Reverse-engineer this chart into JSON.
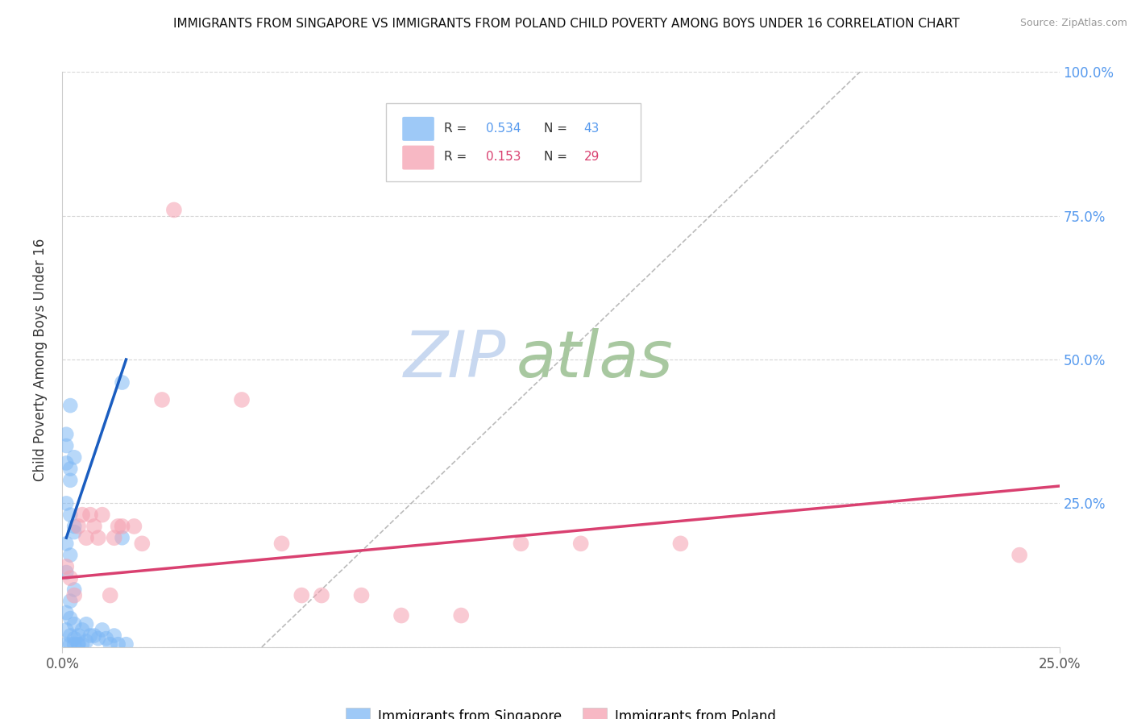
{
  "title": "IMMIGRANTS FROM SINGAPORE VS IMMIGRANTS FROM POLAND CHILD POVERTY AMONG BOYS UNDER 16 CORRELATION CHART",
  "source": "Source: ZipAtlas.com",
  "ylabel": "Child Poverty Among Boys Under 16",
  "xlim": [
    0,
    0.25
  ],
  "ylim": [
    0,
    1.0
  ],
  "xtick_values": [
    0,
    0.25
  ],
  "xtick_labels": [
    "0.0%",
    "25.0%"
  ],
  "ytick_values": [
    0.0,
    0.25,
    0.5,
    0.75,
    1.0
  ],
  "right_ytick_labels": [
    "",
    "25.0%",
    "50.0%",
    "75.0%",
    "100.0%"
  ],
  "singapore_color": "#7EB8F5",
  "singapore_line_color": "#1A5DC0",
  "poland_color": "#F5A0B0",
  "poland_line_color": "#D94070",
  "singapore_R": 0.534,
  "singapore_N": 43,
  "poland_R": 0.153,
  "poland_N": 29,
  "singapore_scatter": [
    [
      0.001,
      0.32
    ],
    [
      0.001,
      0.35
    ],
    [
      0.001,
      0.37
    ],
    [
      0.002,
      0.31
    ],
    [
      0.002,
      0.29
    ],
    [
      0.002,
      0.42
    ],
    [
      0.003,
      0.33
    ],
    [
      0.003,
      0.2
    ],
    [
      0.001,
      0.25
    ],
    [
      0.002,
      0.23
    ],
    [
      0.003,
      0.21
    ],
    [
      0.001,
      0.18
    ],
    [
      0.002,
      0.16
    ],
    [
      0.001,
      0.13
    ],
    [
      0.003,
      0.1
    ],
    [
      0.002,
      0.08
    ],
    [
      0.001,
      0.06
    ],
    [
      0.002,
      0.05
    ],
    [
      0.003,
      0.04
    ],
    [
      0.001,
      0.03
    ],
    [
      0.002,
      0.02
    ],
    [
      0.003,
      0.015
    ],
    [
      0.004,
      0.005
    ],
    [
      0.005,
      0.005
    ],
    [
      0.004,
      0.02
    ],
    [
      0.005,
      0.03
    ],
    [
      0.006,
      0.04
    ],
    [
      0.007,
      0.02
    ],
    [
      0.006,
      0.01
    ],
    [
      0.008,
      0.02
    ],
    [
      0.009,
      0.015
    ],
    [
      0.01,
      0.03
    ],
    [
      0.011,
      0.015
    ],
    [
      0.012,
      0.005
    ],
    [
      0.013,
      0.02
    ],
    [
      0.014,
      0.005
    ],
    [
      0.015,
      0.19
    ],
    [
      0.015,
      0.46
    ],
    [
      0.016,
      0.005
    ],
    [
      0.003,
      0.005
    ],
    [
      0.004,
      0.005
    ],
    [
      0.002,
      0.005
    ],
    [
      0.001,
      0.005
    ]
  ],
  "poland_scatter": [
    [
      0.001,
      0.14
    ],
    [
      0.002,
      0.12
    ],
    [
      0.003,
      0.09
    ],
    [
      0.004,
      0.21
    ],
    [
      0.005,
      0.23
    ],
    [
      0.006,
      0.19
    ],
    [
      0.007,
      0.23
    ],
    [
      0.008,
      0.21
    ],
    [
      0.009,
      0.19
    ],
    [
      0.01,
      0.23
    ],
    [
      0.012,
      0.09
    ],
    [
      0.013,
      0.19
    ],
    [
      0.014,
      0.21
    ],
    [
      0.015,
      0.21
    ],
    [
      0.018,
      0.21
    ],
    [
      0.02,
      0.18
    ],
    [
      0.025,
      0.43
    ],
    [
      0.028,
      0.76
    ],
    [
      0.045,
      0.43
    ],
    [
      0.055,
      0.18
    ],
    [
      0.06,
      0.09
    ],
    [
      0.065,
      0.09
    ],
    [
      0.075,
      0.09
    ],
    [
      0.085,
      0.055
    ],
    [
      0.1,
      0.055
    ],
    [
      0.115,
      0.18
    ],
    [
      0.13,
      0.18
    ],
    [
      0.155,
      0.18
    ],
    [
      0.24,
      0.16
    ]
  ],
  "diagonal_line": [
    [
      0.05,
      0.0
    ],
    [
      0.2,
      1.0
    ]
  ],
  "watermark_zip": "ZIP",
  "watermark_atlas": "atlas",
  "watermark_color_zip": "#C8D8F0",
  "watermark_color_atlas": "#A8C8A0",
  "background_color": "#FFFFFF",
  "grid_color": "#CCCCCC",
  "legend_items": [
    "Immigrants from Singapore",
    "Immigrants from Poland"
  ],
  "right_axis_color": "#5599EE",
  "sg_line_x": [
    0.001,
    0.016
  ],
  "sg_line_y": [
    0.19,
    0.5
  ],
  "pl_line_x": [
    0.0,
    0.25
  ],
  "pl_line_y": [
    0.12,
    0.28
  ]
}
